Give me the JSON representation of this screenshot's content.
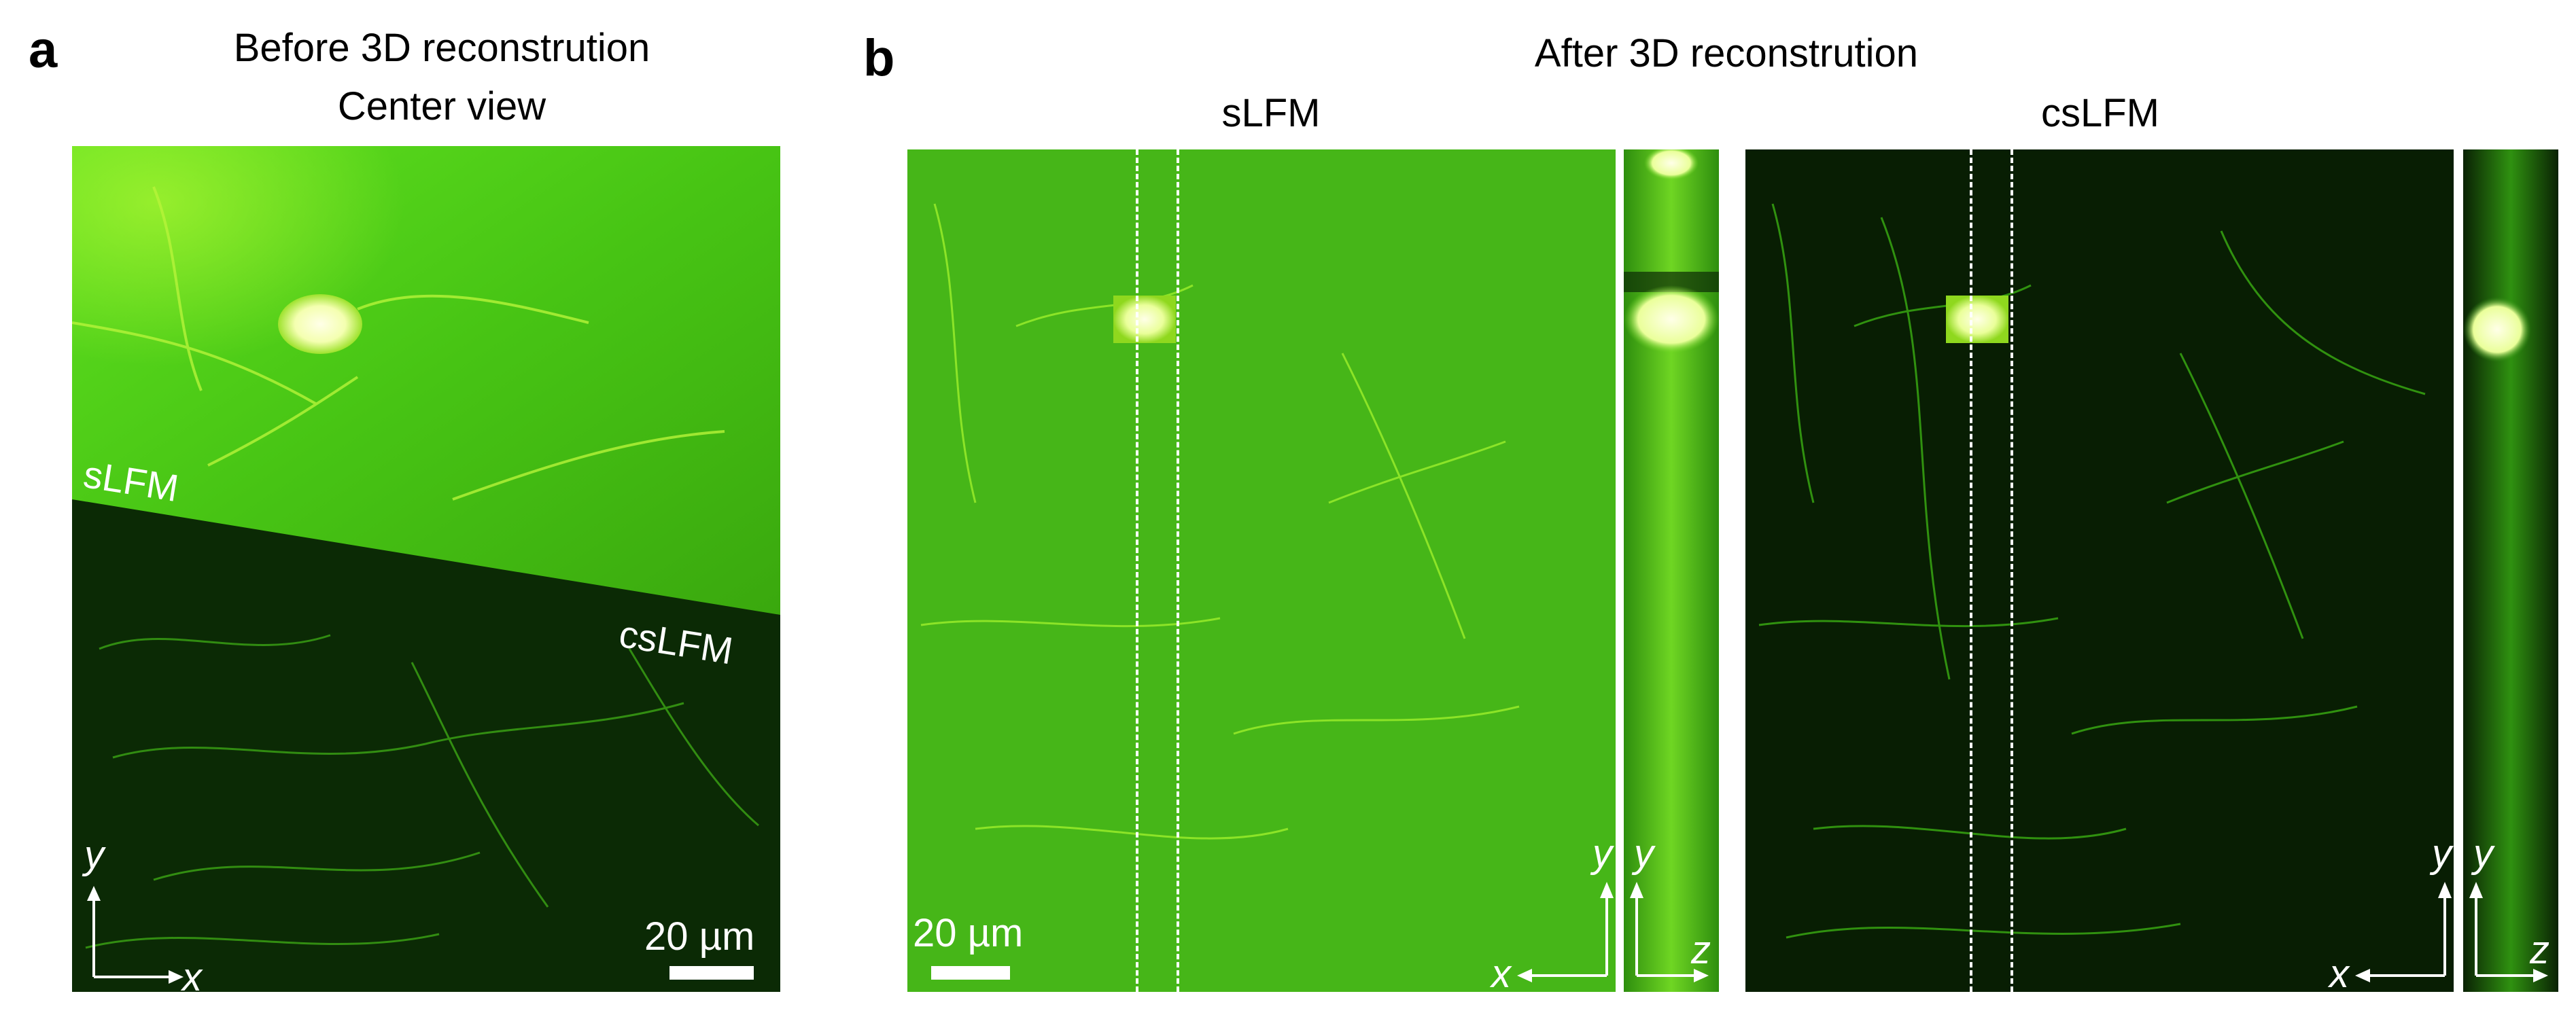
{
  "panel_a": {
    "letter": "a",
    "title_line1": "Before 3D reconstrution",
    "title_line2": "Center view",
    "label_top": "sLFM",
    "label_bottom": "csLFM",
    "axis_y": "y",
    "axis_x": "x",
    "scale_label": "20 µm"
  },
  "panel_b": {
    "letter": "b",
    "title": "After 3D reconstrution",
    "left_subtitle": "sLFM",
    "right_subtitle": "csLFM",
    "axis_x": "x",
    "axis_y": "y",
    "axis_z": "z",
    "scale_label": "20 µm"
  },
  "colors": {
    "bright_green": "#4fd01d",
    "dark_green": "#0b2a05",
    "line_white": "#ffffff"
  }
}
